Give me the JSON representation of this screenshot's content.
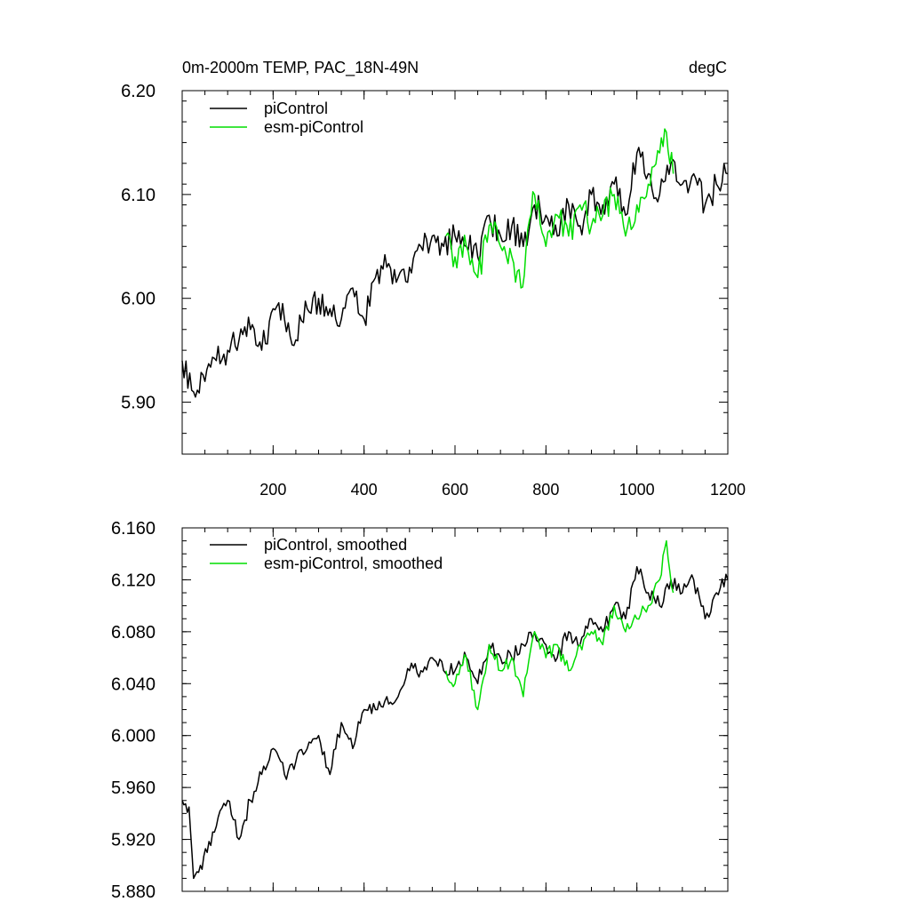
{
  "chart_data": [
    {
      "type": "line",
      "title": "0m-2000m TEMP, PAC_18N-49N",
      "units": "degC",
      "xlim": [
        0,
        1200
      ],
      "ylim": [
        5.85,
        6.2
      ],
      "x_ticks": [
        200,
        400,
        600,
        800,
        1000,
        1200
      ],
      "y_ticks": [
        5.9,
        6.0,
        6.1,
        6.2
      ],
      "y_tick_labels": [
        "5.90",
        "6.00",
        "6.10",
        "6.20"
      ],
      "legend": [
        "piControl",
        "esm-piControl"
      ],
      "legend_position": "top-left",
      "series": [
        {
          "name": "piControl",
          "color": "#000000",
          "x": [
            0,
            25,
            50,
            75,
            100,
            125,
            150,
            175,
            200,
            225,
            250,
            275,
            300,
            325,
            350,
            375,
            400,
            425,
            450,
            475,
            500,
            525,
            550,
            575,
            600,
            625,
            650,
            675,
            700,
            725,
            750,
            775,
            800,
            825,
            850,
            875,
            900,
            925,
            950,
            975,
            1000,
            1025,
            1050,
            1075,
            1100,
            1125,
            1150,
            1175,
            1200
          ],
          "values": [
            5.94,
            5.91,
            5.92,
            5.94,
            5.95,
            5.96,
            5.97,
            5.95,
            5.99,
            5.98,
            5.96,
            5.99,
            6.0,
            5.99,
            5.98,
            6.01,
            5.98,
            6.02,
            6.03,
            6.02,
            6.03,
            6.05,
            6.06,
            6.05,
            6.06,
            6.05,
            6.04,
            6.08,
            6.06,
            6.07,
            6.05,
            6.09,
            6.08,
            6.06,
            6.09,
            6.07,
            6.1,
            6.09,
            6.11,
            6.08,
            6.14,
            6.12,
            6.1,
            6.13,
            6.11,
            6.12,
            6.09,
            6.11,
            6.12
          ]
        },
        {
          "name": "esm-piControl",
          "color": "#00dd00",
          "x": [
            580,
            600,
            625,
            650,
            675,
            700,
            725,
            745,
            775,
            800,
            825,
            850,
            875,
            900,
            925,
            950,
            975,
            1000,
            1025,
            1050,
            1065,
            1080
          ],
          "values": [
            6.06,
            6.04,
            6.05,
            6.02,
            6.07,
            6.05,
            6.04,
            6.01,
            6.1,
            6.05,
            6.08,
            6.06,
            6.09,
            6.07,
            6.08,
            6.1,
            6.06,
            6.09,
            6.11,
            6.14,
            6.16,
            6.12
          ]
        }
      ]
    },
    {
      "type": "line",
      "title": "",
      "xlim": [
        0,
        1200
      ],
      "ylim": [
        5.88,
        6.16
      ],
      "x_ticks": [
        200,
        400,
        600,
        800,
        1000,
        1200
      ],
      "y_ticks": [
        5.88,
        5.92,
        5.96,
        6.0,
        6.04,
        6.08,
        6.12,
        6.16
      ],
      "y_tick_labels": [
        "5.880",
        "5.920",
        "5.960",
        "6.000",
        "6.040",
        "6.080",
        "6.120",
        "6.160"
      ],
      "legend": [
        "piControl, smoothed",
        "esm-piControl, smoothed"
      ],
      "legend_position": "top-left",
      "series": [
        {
          "name": "piControl, smoothed",
          "color": "#000000",
          "x": [
            0,
            15,
            25,
            40,
            55,
            75,
            100,
            125,
            150,
            175,
            200,
            225,
            250,
            275,
            300,
            325,
            350,
            375,
            400,
            425,
            450,
            475,
            500,
            525,
            550,
            575,
            600,
            625,
            650,
            675,
            700,
            725,
            750,
            775,
            800,
            825,
            850,
            875,
            900,
            925,
            950,
            975,
            1000,
            1025,
            1050,
            1075,
            1100,
            1125,
            1150,
            1175,
            1200
          ],
          "values": [
            5.95,
            5.945,
            5.89,
            5.9,
            5.91,
            5.93,
            5.95,
            5.92,
            5.95,
            5.97,
            5.99,
            5.97,
            5.98,
            5.99,
            6.0,
            5.97,
            6.01,
            5.99,
            6.02,
            6.02,
            6.03,
            6.03,
            6.05,
            6.05,
            6.06,
            6.05,
            6.05,
            6.06,
            6.04,
            6.07,
            6.06,
            6.06,
            6.07,
            6.08,
            6.07,
            6.06,
            6.08,
            6.07,
            6.09,
            6.08,
            6.1,
            6.09,
            6.13,
            6.11,
            6.1,
            6.12,
            6.11,
            6.12,
            6.09,
            6.11,
            6.12
          ]
        },
        {
          "name": "esm-piControl, smoothed",
          "color": "#00dd00",
          "x": [
            580,
            600,
            625,
            650,
            675,
            700,
            725,
            750,
            775,
            800,
            825,
            850,
            875,
            900,
            925,
            950,
            975,
            1000,
            1025,
            1050,
            1065,
            1080
          ],
          "values": [
            6.05,
            6.04,
            6.06,
            6.02,
            6.07,
            6.05,
            6.06,
            6.03,
            6.08,
            6.06,
            6.07,
            6.05,
            6.07,
            6.08,
            6.07,
            6.1,
            6.08,
            6.09,
            6.1,
            6.12,
            6.15,
            6.11
          ]
        }
      ]
    }
  ]
}
